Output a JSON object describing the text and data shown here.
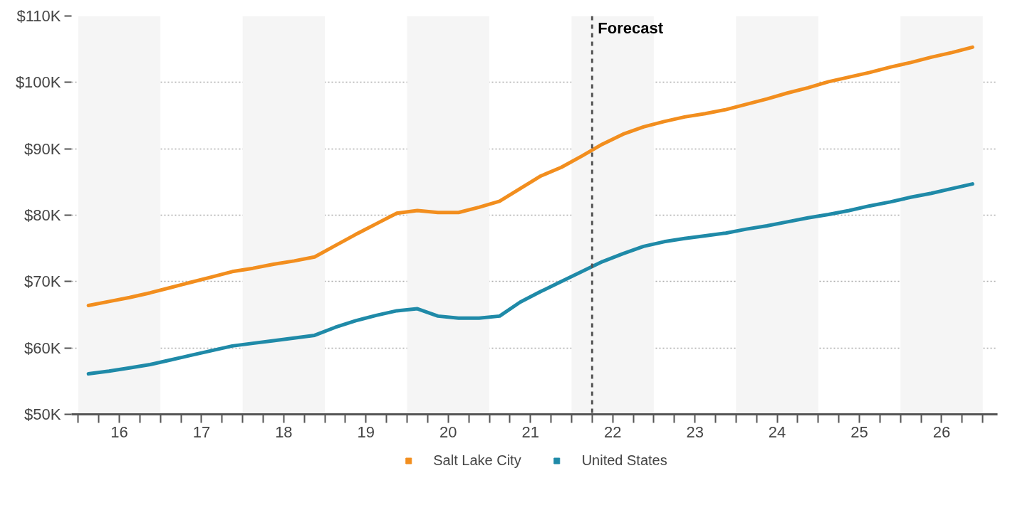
{
  "chart_data": {
    "type": "line",
    "x": [
      16.125,
      16.375,
      16.625,
      16.875,
      17.125,
      17.375,
      17.625,
      17.875,
      18.125,
      18.375,
      18.625,
      18.875,
      19.125,
      19.375,
      19.625,
      19.875,
      20.125,
      20.375,
      20.625,
      20.875,
      21.125,
      21.375,
      21.625,
      21.875,
      22.125,
      22.375,
      22.625,
      22.875,
      23.125,
      23.375,
      23.625,
      23.875,
      24.125,
      24.375,
      24.625,
      24.875,
      25.125,
      25.375,
      25.625,
      25.875,
      26.125,
      26.375,
      26.625,
      26.875
    ],
    "series": [
      {
        "name": "Salt Lake City",
        "color": "#f28e1e",
        "values": [
          66.4,
          67.0,
          67.6,
          68.3,
          69.1,
          69.9,
          70.7,
          71.5,
          72.0,
          72.6,
          73.1,
          73.7,
          75.4,
          77.1,
          78.7,
          80.3,
          80.7,
          80.4,
          80.4,
          81.2,
          82.1,
          84.0,
          85.9,
          87.2,
          88.9,
          90.7,
          92.2,
          93.3,
          94.1,
          94.8,
          95.3,
          95.9,
          96.7,
          97.5,
          98.4,
          99.2,
          100.1,
          100.8,
          101.5,
          102.3,
          103.0,
          103.8,
          104.5,
          105.3
        ]
      },
      {
        "name": "United States",
        "color": "#1f8aa8",
        "values": [
          56.1,
          56.5,
          57.0,
          57.5,
          58.2,
          58.9,
          59.6,
          60.3,
          60.7,
          61.1,
          61.5,
          61.9,
          63.1,
          64.1,
          64.9,
          65.6,
          65.9,
          64.8,
          64.5,
          64.5,
          64.8,
          66.9,
          68.5,
          70.0,
          71.5,
          73.0,
          74.2,
          75.3,
          76.0,
          76.5,
          76.9,
          77.3,
          77.9,
          78.4,
          79.0,
          79.6,
          80.1,
          80.7,
          81.4,
          82.0,
          82.7,
          83.3,
          84.0,
          84.7
        ]
      }
    ],
    "xlim": [
      15.92,
      27.18
    ],
    "xticks": [
      {
        "value": 16.0,
        "label": null
      },
      {
        "value": 16.25,
        "label": null
      },
      {
        "value": 16.5,
        "label": "16"
      },
      {
        "value": 16.75,
        "label": null
      },
      {
        "value": 17.0,
        "label": null
      },
      {
        "value": 17.25,
        "label": null
      },
      {
        "value": 17.5,
        "label": "17"
      },
      {
        "value": 17.75,
        "label": null
      },
      {
        "value": 18.0,
        "label": null
      },
      {
        "value": 18.25,
        "label": null
      },
      {
        "value": 18.5,
        "label": "18"
      },
      {
        "value": 18.75,
        "label": null
      },
      {
        "value": 19.0,
        "label": null
      },
      {
        "value": 19.25,
        "label": null
      },
      {
        "value": 19.5,
        "label": "19"
      },
      {
        "value": 19.75,
        "label": null
      },
      {
        "value": 20.0,
        "label": null
      },
      {
        "value": 20.25,
        "label": null
      },
      {
        "value": 20.5,
        "label": "20"
      },
      {
        "value": 20.75,
        "label": null
      },
      {
        "value": 21.0,
        "label": null
      },
      {
        "value": 21.25,
        "label": null
      },
      {
        "value": 21.5,
        "label": "21"
      },
      {
        "value": 21.75,
        "label": null
      },
      {
        "value": 22.0,
        "label": null
      },
      {
        "value": 22.25,
        "label": null
      },
      {
        "value": 22.5,
        "label": "22"
      },
      {
        "value": 22.75,
        "label": null
      },
      {
        "value": 23.0,
        "label": null
      },
      {
        "value": 23.25,
        "label": null
      },
      {
        "value": 23.5,
        "label": "23"
      },
      {
        "value": 23.75,
        "label": null
      },
      {
        "value": 24.0,
        "label": null
      },
      {
        "value": 24.25,
        "label": null
      },
      {
        "value": 24.5,
        "label": "24"
      },
      {
        "value": 24.75,
        "label": null
      },
      {
        "value": 25.0,
        "label": null
      },
      {
        "value": 25.25,
        "label": null
      },
      {
        "value": 25.5,
        "label": "25"
      },
      {
        "value": 25.75,
        "label": null
      },
      {
        "value": 26.0,
        "label": null
      },
      {
        "value": 26.25,
        "label": null
      },
      {
        "value": 26.5,
        "label": "26"
      },
      {
        "value": 26.75,
        "label": null
      },
      {
        "value": 27.0,
        "label": null
      }
    ],
    "ylim": [
      50,
      110
    ],
    "yticks": [
      {
        "value": 50,
        "label": "$50K"
      },
      {
        "value": 60,
        "label": "$60K"
      },
      {
        "value": 70,
        "label": "$70K"
      },
      {
        "value": 80,
        "label": "$80K"
      },
      {
        "value": 90,
        "label": "$90K"
      },
      {
        "value": 100,
        "label": "$100K"
      },
      {
        "value": 110,
        "label": "$110K"
      }
    ],
    "ref_lines": [
      {
        "axis": "x",
        "value": 22.25,
        "label": "Forecast",
        "color": "#555555",
        "line_style": "dashed"
      }
    ],
    "bands": [
      {
        "axis": "x",
        "from": 16,
        "to": 17,
        "color": "#f5f5f5"
      },
      {
        "axis": "x",
        "from": 18,
        "to": 19,
        "color": "#f5f5f5"
      },
      {
        "axis": "x",
        "from": 20,
        "to": 21,
        "color": "#f5f5f5"
      },
      {
        "axis": "x",
        "from": 22,
        "to": 23,
        "color": "#f5f5f5"
      },
      {
        "axis": "x",
        "from": 24,
        "to": 25,
        "color": "#f5f5f5"
      },
      {
        "axis": "x",
        "from": 26,
        "to": 27,
        "color": "#f5f5f5"
      }
    ],
    "grid": "y",
    "legend": "bottom",
    "marker": "none",
    "line_style": "solid"
  }
}
